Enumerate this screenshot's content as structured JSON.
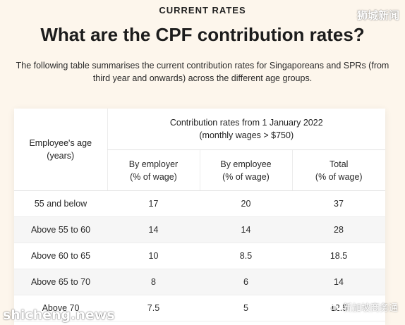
{
  "header": {
    "eyebrow": "CURRENT RATES",
    "title": "What are the CPF contribution rates?",
    "lede_line1": "The following table summarises the current contribution rates for Singaporeans and SPRs (from",
    "lede_line2": "third year and onwards) across the different age groups."
  },
  "table": {
    "age_header_line1": "Employee's age",
    "age_header_line2": "(years)",
    "group_header_line1": "Contribution rates from 1 January 2022",
    "group_header_line2": "(monthly wages > $750)",
    "sub_headers": [
      {
        "line1": "By employer",
        "line2": "(% of wage)"
      },
      {
        "line1": "By employee",
        "line2": "(% of wage)"
      },
      {
        "line1": "Total",
        "line2": "(% of wage)"
      }
    ],
    "rows": [
      {
        "age": "55 and below",
        "employer": "17",
        "employee": "20",
        "total": "37"
      },
      {
        "age": "Above 55 to 60",
        "employer": "14",
        "employee": "14",
        "total": "28"
      },
      {
        "age": "Above 60 to 65",
        "employer": "10",
        "employee": "8.5",
        "total": "18.5"
      },
      {
        "age": "Above 65 to 70",
        "employer": "8",
        "employee": "6",
        "total": "14"
      },
      {
        "age": "Above 70",
        "employer": "7.5",
        "employee": "5",
        "total": "12.5"
      }
    ]
  },
  "watermarks": {
    "top_right": "狮城新闻",
    "bottom_left": "shicheng.news",
    "bottom_right": "新加坡商务通",
    "bottom_right_icon": "wechat-icon"
  }
}
